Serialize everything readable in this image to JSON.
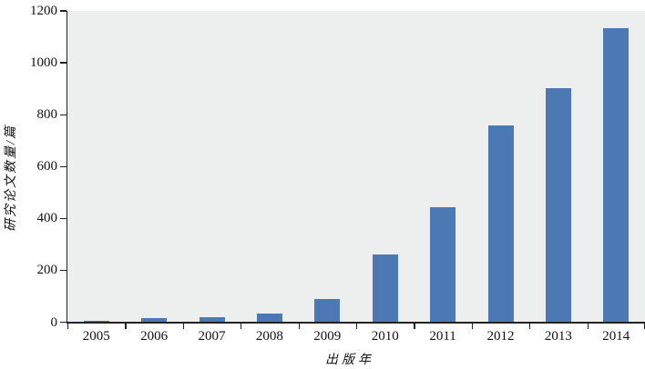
{
  "figure": {
    "title": "",
    "x_axis_title": "出版年",
    "y_axis_title": "研究论文数量/篇"
  },
  "chart_data": {
    "type": "bar",
    "title": "",
    "categories": [
      "2005",
      "2006",
      "2007",
      "2008",
      "2009",
      "2010",
      "2011",
      "2012",
      "2013",
      "2014"
    ],
    "values": [
      7,
      15,
      19,
      34,
      91,
      260,
      442,
      760,
      903,
      1133
    ],
    "xlabel": "出版年",
    "ylabel": "研究论文数量/篇",
    "ylim": [
      0,
      1200
    ],
    "yticks": [
      0,
      200,
      400,
      600,
      800,
      1000,
      1200
    ],
    "grid": false,
    "legend": "none",
    "bar_color": "#4c79b3",
    "plot_bg_color": "#edeeee",
    "axis_color": "#222222",
    "text_color": "#111111"
  }
}
